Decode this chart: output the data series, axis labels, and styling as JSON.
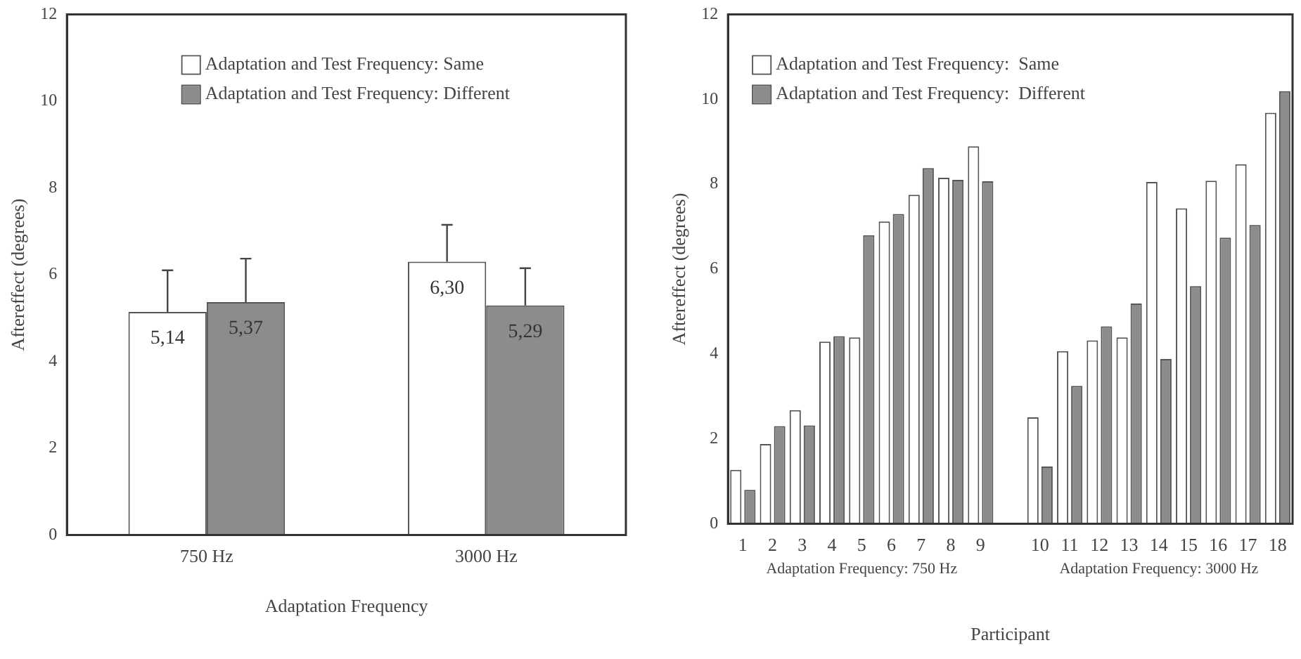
{
  "chart_data": [
    {
      "type": "bar",
      "categories": [
        "750 Hz",
        "3000 Hz"
      ],
      "xlabel": "Adaptation Frequency",
      "ylabel": "Aftereffect (degrees)",
      "ylim": [
        0,
        12
      ],
      "yticks": [
        0,
        2,
        4,
        6,
        8,
        10,
        12
      ],
      "grid": false,
      "legend": "top",
      "series": [
        {
          "name": "Adaptation and Test Frequency: Same",
          "color": "#ffffff",
          "values": [
            5.14,
            6.3
          ],
          "value_labels": [
            "5,14",
            "6,30"
          ],
          "errors": [
            [
              5.14,
              6.1
            ],
            [
              6.3,
              7.15
            ]
          ]
        },
        {
          "name": "Adaptation and Test Frequency: Different",
          "color": "#8c8c8c",
          "values": [
            5.37,
            5.29
          ],
          "value_labels": [
            "5,37",
            "5,29"
          ],
          "errors": [
            [
              5.37,
              6.37
            ],
            [
              5.29,
              6.15
            ]
          ]
        }
      ]
    },
    {
      "type": "bar",
      "categories": [
        "1",
        "2",
        "3",
        "4",
        "5",
        "6",
        "7",
        "8",
        "9",
        null,
        "10",
        "11",
        "12",
        "13",
        "14",
        "15",
        "16",
        "17",
        "18"
      ],
      "xlabel": "Participant",
      "ylabel": "Aftereffect (degrees)",
      "ylim": [
        0,
        12
      ],
      "yticks": [
        0,
        2,
        4,
        6,
        8,
        10,
        12
      ],
      "grid": false,
      "legend": "top left",
      "annotations": [
        "Adaptation Frequency: 750 Hz",
        "Adaptation Frequency: 3000 Hz"
      ],
      "series": [
        {
          "name": "Adaptation and Test Frequency:  Same",
          "color": "#ffffff",
          "values": [
            1.27,
            1.88,
            2.68,
            4.29,
            4.39,
            7.12,
            7.75,
            8.15,
            8.89,
            null,
            2.51,
            4.07,
            4.32,
            4.39,
            8.05,
            7.43,
            8.08,
            8.47,
            9.68
          ]
        },
        {
          "name": "Adaptation and Test Frequency:  Different",
          "color": "#8c8c8c",
          "values": [
            0.8,
            2.3,
            2.32,
            4.42,
            6.8,
            7.3,
            8.38,
            8.1,
            8.07,
            null,
            1.35,
            3.25,
            4.65,
            5.19,
            3.88,
            5.6,
            6.74,
            7.04,
            10.19
          ]
        }
      ]
    }
  ]
}
